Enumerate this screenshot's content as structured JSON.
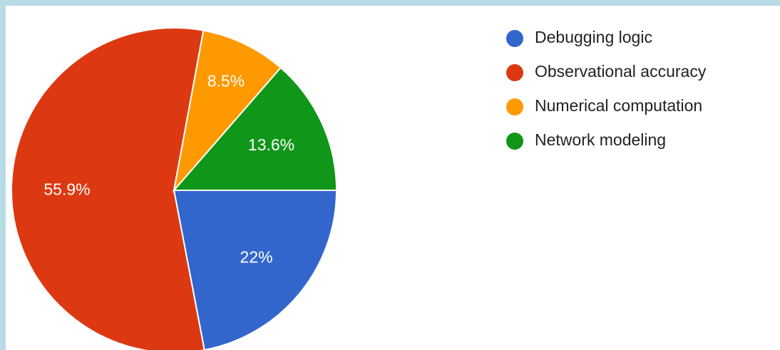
{
  "chart_data": {
    "type": "pie",
    "title": "",
    "slices": [
      {
        "label": "Debugging logic",
        "value": 22,
        "display": "22%",
        "color": "#3366cc"
      },
      {
        "label": "Observational accuracy",
        "value": 55.9,
        "display": "55.9%",
        "color": "#dc3912"
      },
      {
        "label": "Numerical computation",
        "value": 8.5,
        "display": "8.5%",
        "color": "#ff9900"
      },
      {
        "label": "Network modeling",
        "value": 13.6,
        "display": "13.6%",
        "color": "#109618"
      }
    ],
    "start_angle_deg": 90,
    "direction": "clockwise",
    "legend_position": "right"
  }
}
